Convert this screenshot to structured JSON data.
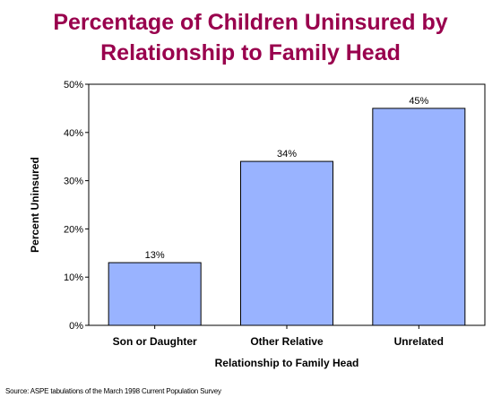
{
  "chart_data": {
    "type": "bar",
    "title_line1": "Percentage of Children Uninsured by",
    "title_line2": "Relationship to Family Head",
    "categories": [
      "Son or Daughter",
      "Other Relative",
      "Unrelated"
    ],
    "values": [
      13,
      34,
      45
    ],
    "data_labels": [
      "13%",
      "34%",
      "45%"
    ],
    "xlabel": "Relationship to Family Head",
    "ylabel": "Percent Uninsured",
    "ylim": [
      0,
      50
    ],
    "yticks": [
      0,
      10,
      20,
      30,
      40,
      50
    ],
    "ytick_labels": [
      "0%",
      "10%",
      "20%",
      "30%",
      "40%",
      "50%"
    ],
    "bar_color": "#99b3ff",
    "bar_edge_color": "#000000",
    "title_color": "#99004d",
    "grid": false,
    "legend": "none"
  },
  "source": "Source: ASPE tabulations of the March 1998 Current Population Survey"
}
